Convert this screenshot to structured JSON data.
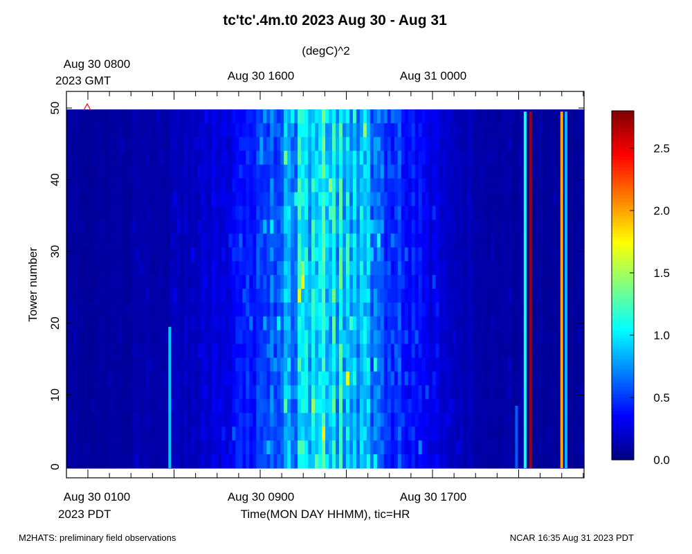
{
  "chart_data": {
    "type": "heatmap",
    "title": "tc'tc'.4m.t0 2023 Aug 30 - Aug 31",
    "subtitle": "(degC)^2",
    "ylabel": "Tower number",
    "xlabel": "Time(MON DAY HHMM), tic=HR",
    "ylim": [
      0,
      50
    ],
    "y_ticks": [
      0,
      10,
      20,
      30,
      40,
      50
    ],
    "colorbar": {
      "range": [
        0.0,
        2.8
      ],
      "ticks": [
        "0.0",
        "0.5",
        "1.0",
        "1.5",
        "2.0",
        "2.5"
      ],
      "colormap": "jet"
    },
    "x_ticks_bottom": [
      {
        "line1": "Aug 30 0100",
        "line2": "2023 PDT"
      },
      {
        "line1": "Aug 30 0900",
        "line2": ""
      },
      {
        "line1": "Aug 30 1700",
        "line2": ""
      }
    ],
    "x_ticks_top": [
      {
        "line1": "Aug 30 0800",
        "line2": "2023 GMT"
      },
      {
        "line1": "Aug 30 1600",
        "line2": ""
      },
      {
        "line1": "Aug 31 0000",
        "line2": ""
      }
    ],
    "x_range_hours_pdt": [
      "Aug 30 0010",
      "Aug 30 2400"
    ],
    "data_y_range": [
      0,
      49
    ],
    "value_profile_by_hour": [
      {
        "hour": 0.0,
        "value": 0.08
      },
      {
        "hour": 2.0,
        "value": 0.08
      },
      {
        "hour": 4.0,
        "value": 0.12
      },
      {
        "hour": 5.0,
        "value": 0.14
      },
      {
        "hour": 6.0,
        "value": 0.18
      },
      {
        "hour": 7.0,
        "value": 0.25
      },
      {
        "hour": 8.0,
        "value": 0.35
      },
      {
        "hour": 9.0,
        "value": 0.5
      },
      {
        "hour": 10.0,
        "value": 0.72
      },
      {
        "hour": 11.0,
        "value": 0.9
      },
      {
        "hour": 12.0,
        "value": 0.95
      },
      {
        "hour": 13.0,
        "value": 0.9
      },
      {
        "hour": 14.0,
        "value": 0.75
      },
      {
        "hour": 15.0,
        "value": 0.55
      },
      {
        "hour": 16.0,
        "value": 0.38
      },
      {
        "hour": 17.0,
        "value": 0.28
      },
      {
        "hour": 18.0,
        "value": 0.18
      },
      {
        "hour": 19.0,
        "value": 0.12
      },
      {
        "hour": 20.0,
        "value": 0.1
      },
      {
        "hour": 22.0,
        "value": 0.08
      },
      {
        "hour": 24.0,
        "value": 0.08
      }
    ],
    "highlight_columns": [
      {
        "hour": 4.8,
        "value": 0.9,
        "y_from": 0,
        "y_to": 19
      },
      {
        "hour": 20.9,
        "value": 0.6,
        "y_from": 0,
        "y_to": 8
      },
      {
        "hour": 21.3,
        "value": 1.1,
        "y_from": 0,
        "y_to": 49
      },
      {
        "hour": 21.55,
        "value": 2.7,
        "y_from": 0,
        "y_to": 49
      },
      {
        "hour": 23.0,
        "value": 2.0,
        "y_from": 0,
        "y_to": 49
      },
      {
        "hour": 23.2,
        "value": 0.85,
        "y_from": 0,
        "y_to": 49
      }
    ],
    "marker_color": "#ff0000"
  },
  "footer": {
    "left": "M2HATS: preliminary field observations",
    "right": "NCAR 16:35 Aug 31 2023 PDT"
  }
}
